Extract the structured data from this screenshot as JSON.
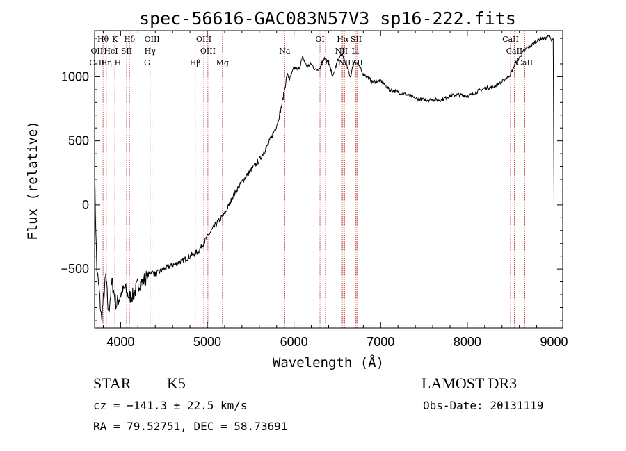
{
  "chart_data": {
    "type": "line",
    "title": "spec-56616-GAC083N57V3_sp16-222.fits",
    "xlabel": "Wavelength (Å)",
    "ylabel": "Flux (relative)",
    "xlim": [
      3700,
      9100
    ],
    "ylim": [
      -960,
      1360
    ],
    "xticks": [
      4000,
      5000,
      6000,
      7000,
      8000,
      9000
    ],
    "xtick_labels": [
      "4000",
      "5000",
      "6000",
      "7000",
      "8000",
      "9000"
    ],
    "yticks": [
      -500,
      0,
      500,
      1000
    ],
    "ytick_labels": [
      "−500",
      "0",
      "500",
      "1000"
    ],
    "line_color": "#000000",
    "marker_color": "#b22222",
    "series": [
      {
        "name": "flux",
        "x": [
          3700,
          3725,
          3750,
          3780,
          3800,
          3830,
          3860,
          3900,
          3950,
          4000,
          4050,
          4100,
          4150,
          4200,
          4250,
          4300,
          4350,
          4400,
          4450,
          4500,
          4600,
          4700,
          4800,
          4900,
          5000,
          5100,
          5200,
          5300,
          5400,
          5500,
          5600,
          5700,
          5800,
          5850,
          5900,
          5920,
          5950,
          6000,
          6050,
          6100,
          6150,
          6200,
          6250,
          6300,
          6350,
          6400,
          6450,
          6500,
          6550,
          6600,
          6650,
          6700,
          6750,
          6800,
          6850,
          6900,
          7000,
          7100,
          7200,
          7300,
          7400,
          7500,
          7600,
          7700,
          7800,
          7900,
          8000,
          8050,
          8100,
          8200,
          8300,
          8400,
          8500,
          8550,
          8600,
          8650,
          8700,
          8750,
          8800,
          8850,
          8900,
          8950,
          8970,
          8990,
          9000
        ],
        "y": [
          250,
          -500,
          -650,
          -900,
          -750,
          -550,
          -850,
          -600,
          -780,
          -700,
          -650,
          -720,
          -700,
          -620,
          -600,
          -560,
          -520,
          -540,
          -520,
          -500,
          -470,
          -440,
          -400,
          -360,
          -250,
          -150,
          -70,
          70,
          180,
          270,
          350,
          470,
          620,
          750,
          930,
          1020,
          980,
          1070,
          1050,
          1150,
          1080,
          1100,
          1050,
          1070,
          1150,
          1100,
          1000,
          1120,
          1180,
          1100,
          1000,
          1130,
          1080,
          1020,
          1000,
          960,
          970,
          900,
          880,
          860,
          830,
          820,
          820,
          820,
          850,
          860,
          850,
          860,
          880,
          910,
          920,
          960,
          1020,
          1100,
          1150,
          1200,
          1230,
          1250,
          1280,
          1300,
          1300,
          1320,
          1280,
          1300,
          0
        ]
      }
    ],
    "line_markers": [
      {
        "label": "Hθ",
        "x": 3797,
        "row": 0
      },
      {
        "label": "K",
        "x": 3934,
        "row": 0
      },
      {
        "label": "Hδ",
        "x": 4102,
        "row": 0
      },
      {
        "label": "OIII",
        "x": 4363,
        "row": 0
      },
      {
        "label": "OIII",
        "x": 4960,
        "row": 0
      },
      {
        "label": "OI",
        "x": 6300,
        "row": 0
      },
      {
        "label": "Hα",
        "x": 6563,
        "row": 0
      },
      {
        "label": "SII",
        "x": 6717,
        "row": 0
      },
      {
        "label": "CaII",
        "x": 8498,
        "row": 0
      },
      {
        "label": "OII",
        "x": 3727,
        "row": 1
      },
      {
        "label": "HeI",
        "x": 3889,
        "row": 1
      },
      {
        "label": "SII",
        "x": 4069,
        "row": 1
      },
      {
        "label": "Hγ",
        "x": 4340,
        "row": 1
      },
      {
        "label": "OIII",
        "x": 5007,
        "row": 1
      },
      {
        "label": "Na",
        "x": 5893,
        "row": 1
      },
      {
        "label": "NII",
        "x": 6548,
        "row": 1
      },
      {
        "label": "Li",
        "x": 6708,
        "row": 1
      },
      {
        "label": "CaII",
        "x": 8542,
        "row": 1
      },
      {
        "label": "OIII",
        "x": 3727,
        "row": 2
      },
      {
        "label": "Hη",
        "x": 3835,
        "row": 2
      },
      {
        "label": "H",
        "x": 3968,
        "row": 2
      },
      {
        "label": "G",
        "x": 4305,
        "row": 2
      },
      {
        "label": "Hβ",
        "x": 4861,
        "row": 2
      },
      {
        "label": "Mg",
        "x": 5175,
        "row": 2
      },
      {
        "label": "OI",
        "x": 6364,
        "row": 2
      },
      {
        "label": "NII",
        "x": 6583,
        "row": 2
      },
      {
        "label": "SII",
        "x": 6731,
        "row": 2
      },
      {
        "label": "CaII",
        "x": 8662,
        "row": 2
      }
    ]
  },
  "info": {
    "object_class": "STAR",
    "subclass": "K5",
    "survey": "LAMOST DR3",
    "redshift": "cz = −141.3 ± 22.5 km/s",
    "obs_date": "Obs-Date: 20131119",
    "coords": "RA =  79.52751, DEC =  58.73691"
  }
}
